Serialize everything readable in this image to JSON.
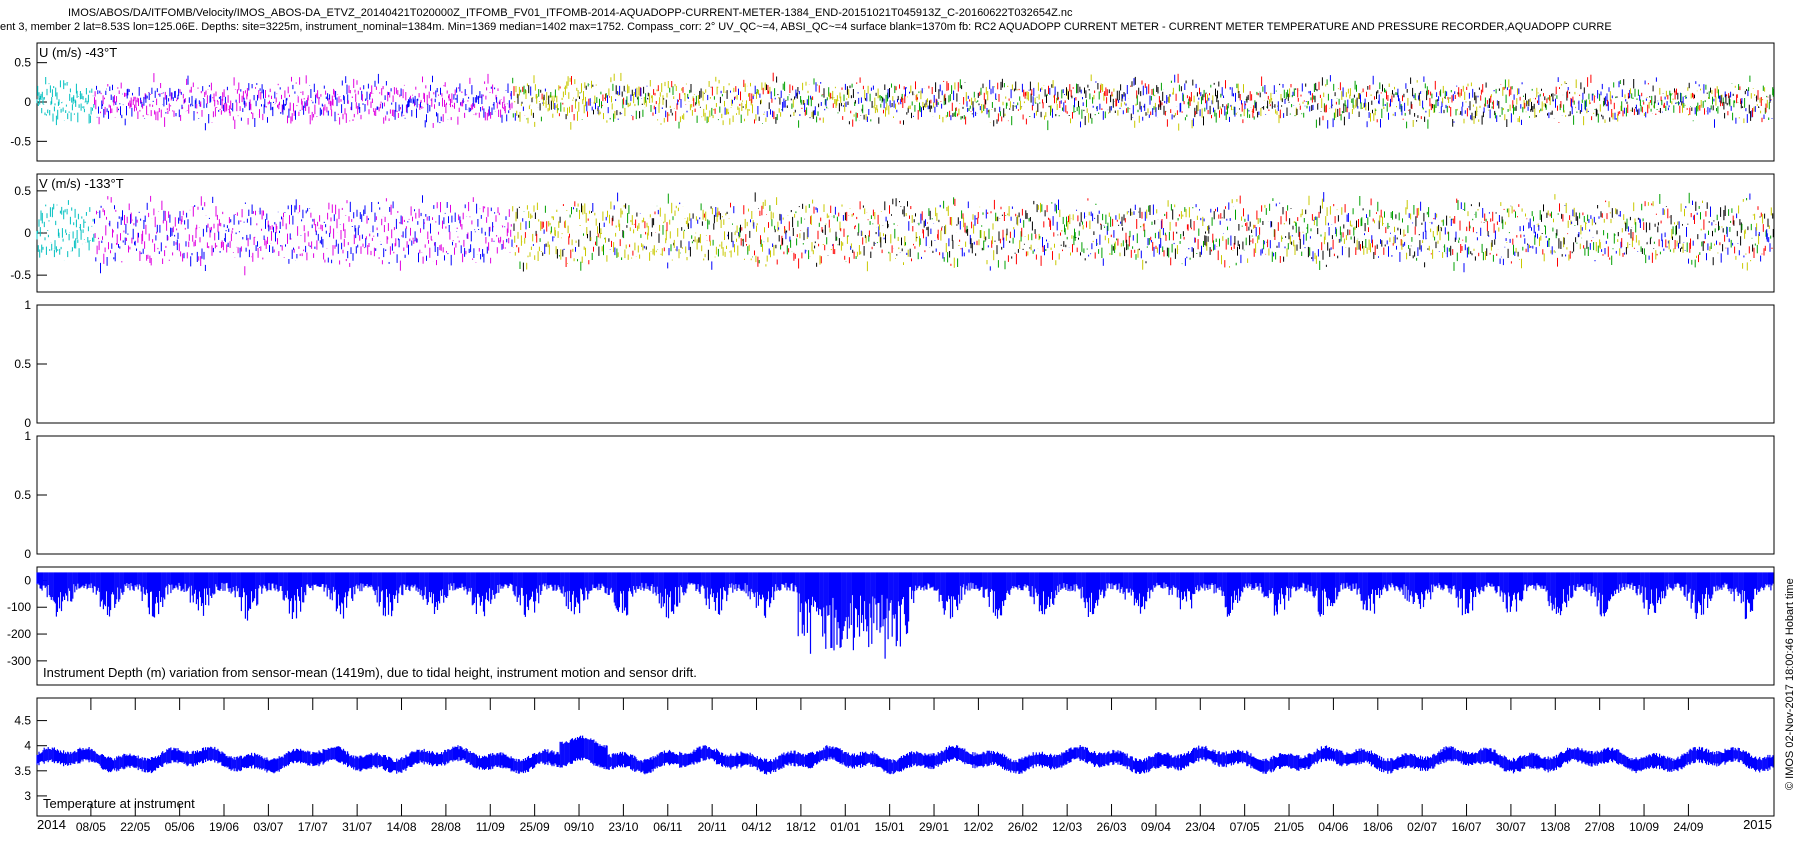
{
  "header": {
    "line1": "IMOS/ABOS/DA/ITFOMB/Velocity/IMOS_ABOS-DA_ETVZ_20140421T020000Z_ITFOMB_FV01_ITFOMB-2014-AQUADOPP-CURRENT-METER-1384_END-20151021T045913Z_C-20160622T032654Z.nc",
    "line2": "ent 3, member 2 lat=8.53S lon=125.06E. Depths: site=3225m, instrument_nominal=1384m. Min=1369 median=1402 max=1752. Compass_corr: 2° UV_QC~=4, ABSI_QC~=4 surface blank=1370m fb: RC2 AQUADOPP CURRENT METER - CURRENT METER TEMPERATURE AND PRESSURE RECORDER,AQUADOPP CURRE"
  },
  "side_stamp": "© IMOS 02-Nov-2017 18:00:46 Hobart time",
  "chart_data": [
    {
      "id": "u",
      "type": "scatter",
      "label": "U (m/s) -43°T",
      "ylim": [
        -0.75,
        0.75
      ],
      "yticks": [
        0.5,
        0,
        -0.5
      ],
      "ytick_labels": [
        "0.5",
        "0",
        "-0.5"
      ],
      "series_colors": [
        "#00c0c0",
        "#e000e0",
        "#c8c800",
        "#000000",
        "#0000ff",
        "#ff0000",
        "#00a000"
      ],
      "envelope_amp": 0.18,
      "typical_range": [
        -0.4,
        0.4
      ]
    },
    {
      "id": "v",
      "type": "scatter",
      "label": "V (m/s) -133°T",
      "ylim": [
        -0.7,
        0.7
      ],
      "yticks": [
        0.5,
        0,
        -0.5
      ],
      "ytick_labels": [
        "0.5",
        "0",
        "-0.5"
      ],
      "series_colors": [
        "#00c0c0",
        "#e000e0",
        "#c8c800",
        "#000000",
        "#0000ff",
        "#ff0000",
        "#00a000"
      ],
      "envelope_amp": 0.3,
      "typical_range": [
        -0.55,
        0.6
      ]
    },
    {
      "id": "empty1",
      "type": "line",
      "label": "",
      "ylim": [
        0,
        1
      ],
      "yticks": [
        1,
        0.5,
        0
      ],
      "ytick_labels": [
        "1",
        "0.5",
        "0"
      ]
    },
    {
      "id": "empty2",
      "type": "line",
      "label": "",
      "ylim": [
        0,
        1
      ],
      "yticks": [
        1,
        0.5,
        0
      ],
      "ytick_labels": [
        "1",
        "0.5",
        "0"
      ]
    },
    {
      "id": "depth",
      "type": "area",
      "label": "Instrument Depth (m) variation from sensor-mean (1419m), due to tidal height, instrument motion and sensor drift.",
      "ylim": [
        -390,
        50
      ],
      "yticks": [
        0,
        -100,
        -200,
        -300
      ],
      "ytick_labels": [
        "0",
        "-100",
        "-200",
        "-300"
      ],
      "color": "#0000ff",
      "typical_range": [
        -330,
        30
      ]
    },
    {
      "id": "temp",
      "type": "line",
      "label": "Temperature at instrument",
      "ylim": [
        2.6,
        4.95
      ],
      "yticks": [
        4.5,
        4,
        3.5,
        3
      ],
      "ytick_labels": [
        "4.5",
        "4",
        "3.5",
        "3"
      ],
      "color": "#0000ff",
      "typical_range": [
        3.5,
        4.15
      ]
    }
  ],
  "x_axis": {
    "range": [
      "2014-04-21",
      "2015-10-21"
    ],
    "year_labels": [
      {
        "date": "2014-04-21",
        "text": "2014"
      },
      {
        "date": "2015-10-21",
        "text": "2015"
      }
    ],
    "ticks": [
      {
        "date": "2014-05-08",
        "text": "08/05"
      },
      {
        "date": "2014-05-22",
        "text": "22/05"
      },
      {
        "date": "2014-06-05",
        "text": "05/06"
      },
      {
        "date": "2014-06-19",
        "text": "19/06"
      },
      {
        "date": "2014-07-03",
        "text": "03/07"
      },
      {
        "date": "2014-07-17",
        "text": "17/07"
      },
      {
        "date": "2014-07-31",
        "text": "31/07"
      },
      {
        "date": "2014-08-14",
        "text": "14/08"
      },
      {
        "date": "2014-08-28",
        "text": "28/08"
      },
      {
        "date": "2014-09-11",
        "text": "11/09"
      },
      {
        "date": "2014-09-25",
        "text": "25/09"
      },
      {
        "date": "2014-10-09",
        "text": "09/10"
      },
      {
        "date": "2014-10-23",
        "text": "23/10"
      },
      {
        "date": "2014-11-06",
        "text": "06/11"
      },
      {
        "date": "2014-11-20",
        "text": "20/11"
      },
      {
        "date": "2014-12-04",
        "text": "04/12"
      },
      {
        "date": "2014-12-18",
        "text": "18/12"
      },
      {
        "date": "2015-01-01",
        "text": "01/01"
      },
      {
        "date": "2015-01-15",
        "text": "15/01"
      },
      {
        "date": "2015-01-29",
        "text": "29/01"
      },
      {
        "date": "2015-02-12",
        "text": "12/02"
      },
      {
        "date": "2015-02-26",
        "text": "26/02"
      },
      {
        "date": "2015-03-12",
        "text": "12/03"
      },
      {
        "date": "2015-03-26",
        "text": "26/03"
      },
      {
        "date": "2015-04-09",
        "text": "09/04"
      },
      {
        "date": "2015-04-23",
        "text": "23/04"
      },
      {
        "date": "2015-05-07",
        "text": "07/05"
      },
      {
        "date": "2015-05-21",
        "text": "21/05"
      },
      {
        "date": "2015-06-04",
        "text": "04/06"
      },
      {
        "date": "2015-06-18",
        "text": "18/06"
      },
      {
        "date": "2015-07-02",
        "text": "02/07"
      },
      {
        "date": "2015-07-16",
        "text": "16/07"
      },
      {
        "date": "2015-07-30",
        "text": "30/07"
      },
      {
        "date": "2015-08-13",
        "text": "13/08"
      },
      {
        "date": "2015-08-27",
        "text": "27/08"
      },
      {
        "date": "2015-09-10",
        "text": "10/09"
      },
      {
        "date": "2015-09-24",
        "text": "24/09"
      }
    ]
  }
}
